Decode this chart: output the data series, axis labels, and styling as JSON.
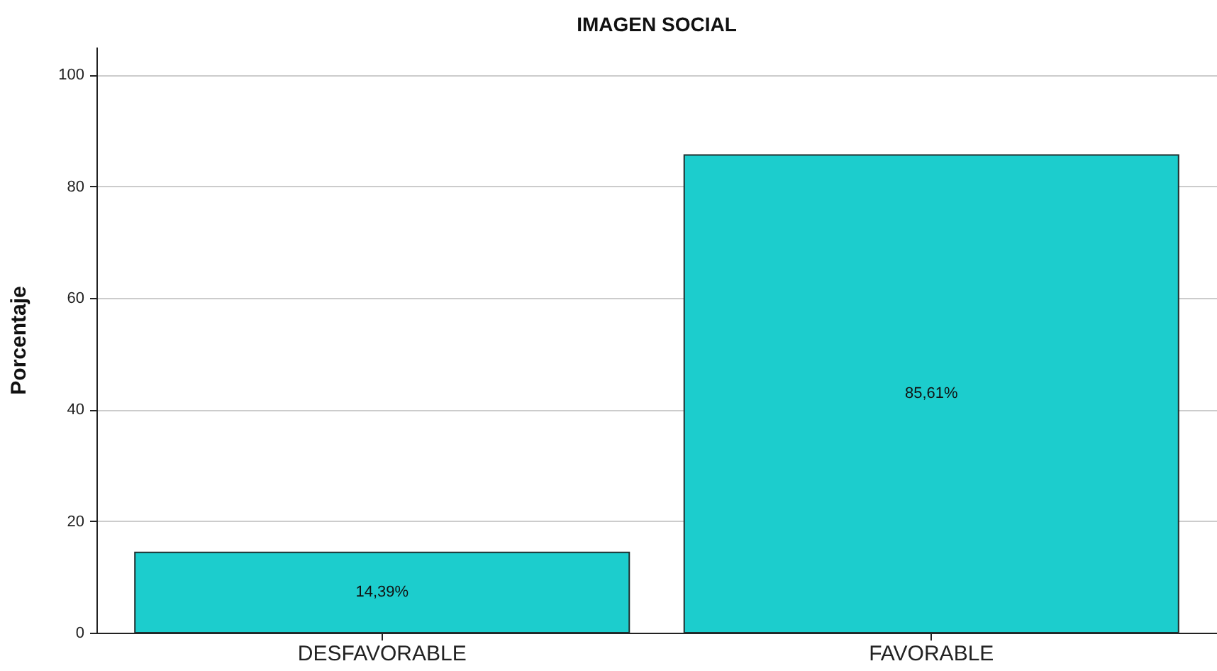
{
  "chart_data": {
    "type": "bar",
    "title": "IMAGEN SOCIAL",
    "ylabel": "Porcentaje",
    "categories": [
      "DESFAVORABLE",
      "FAVORABLE"
    ],
    "values": [
      14.39,
      85.61
    ],
    "value_labels": [
      "14,39%",
      "85,61%"
    ],
    "color": "#1ccdcd",
    "ylim": [
      0,
      105
    ],
    "yticks": [
      0,
      20,
      40,
      60,
      80,
      100
    ],
    "grid": "y"
  }
}
